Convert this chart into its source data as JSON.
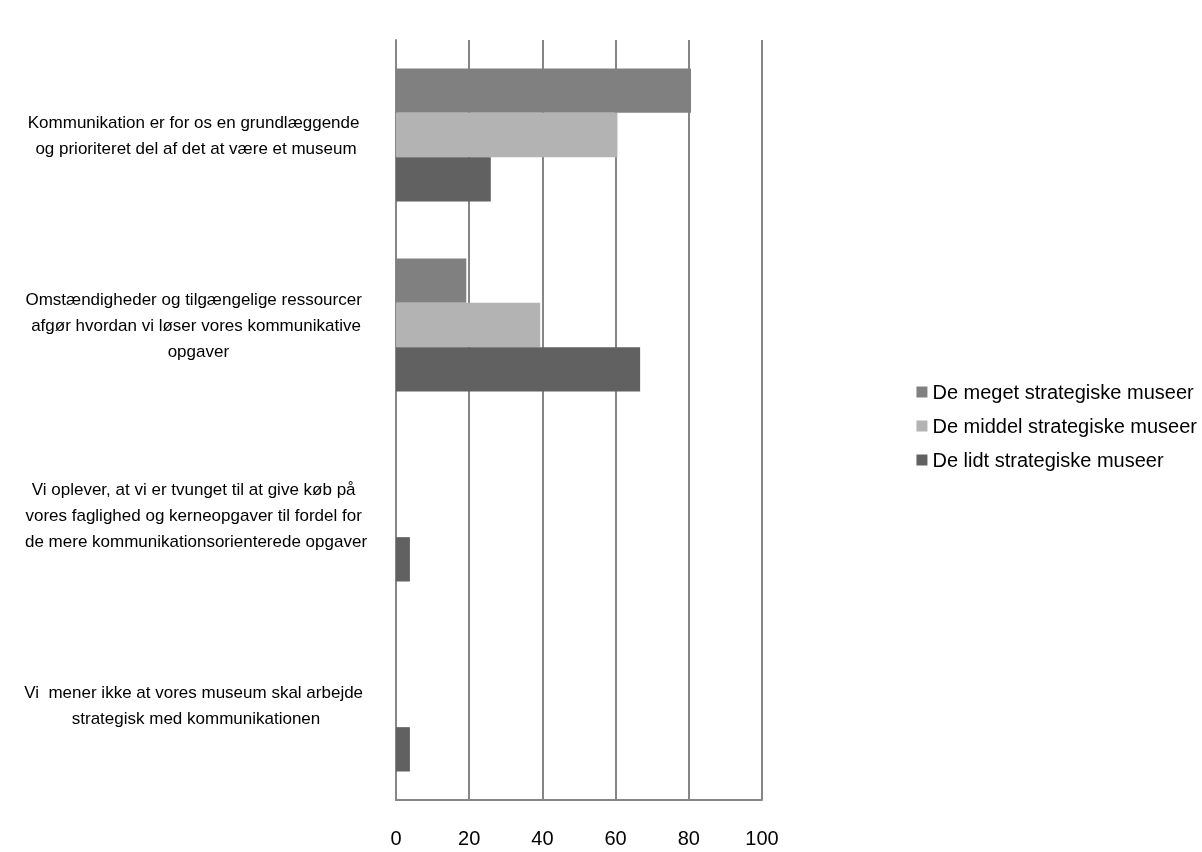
{
  "chart_data": {
    "type": "bar",
    "orientation": "horizontal",
    "categories": [
      "Kommunikation er for os en grundlæggende og prioriteret del af det at være et museum",
      "Omstændigheder og tilgængelige ressourcer afgør hvordan vi løser vores kommunikative opgaver",
      "Vi oplever, at vi er tvunget til at give køb på vores faglighed og kerneopgaver til fordel for de mere kommunikationsorienterede opgaver",
      "Vi  mener ikke at vores museum skal arbejde strategisk med kommunikationen"
    ],
    "series": [
      {
        "name": "De meget strategiske museer",
        "color": "#808080",
        "values": [
          80.6,
          19.2,
          0,
          0
        ]
      },
      {
        "name": "De middel strategiske museer",
        "color": "#b3b3b3",
        "values": [
          60.5,
          39.4,
          0,
          0
        ]
      },
      {
        "name": "De lidt strategiske museer",
        "color": "#616161",
        "values": [
          25.9,
          66.7,
          3.8,
          3.8
        ]
      }
    ],
    "xlim": [
      0,
      100
    ],
    "xticks": [
      0,
      20,
      40,
      60,
      80,
      100
    ],
    "grid": "x",
    "legend": "right"
  }
}
